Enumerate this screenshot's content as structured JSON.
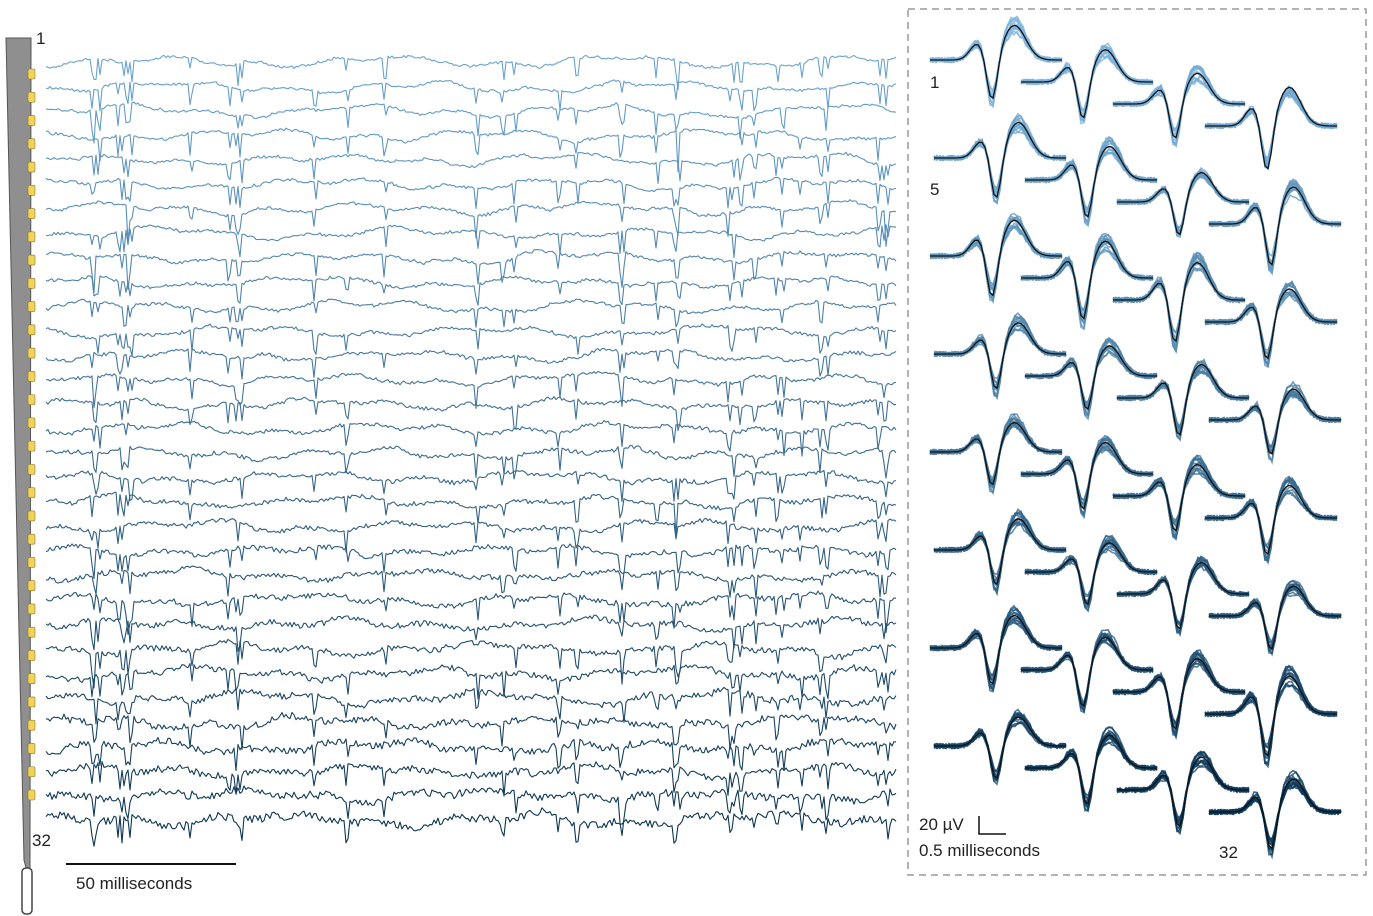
{
  "probe": {
    "channel_count": 32,
    "label_first": "1",
    "label_last": "32",
    "shank_color": "#8f8f8f",
    "contact_color": "#f2d35a"
  },
  "traces": {
    "time_scalebar_label": "50 milliseconds",
    "color_top": "#6aa3cf",
    "color_bottom": "#0c3552"
  },
  "waveforms": {
    "unit_labels": [
      "1",
      "5",
      "32"
    ],
    "amplitude_scalebar_label": "20 µV",
    "time_scalebar_label": "0.5 milliseconds",
    "mean_color": "#111111",
    "border_color": "#9a9a9a"
  }
}
